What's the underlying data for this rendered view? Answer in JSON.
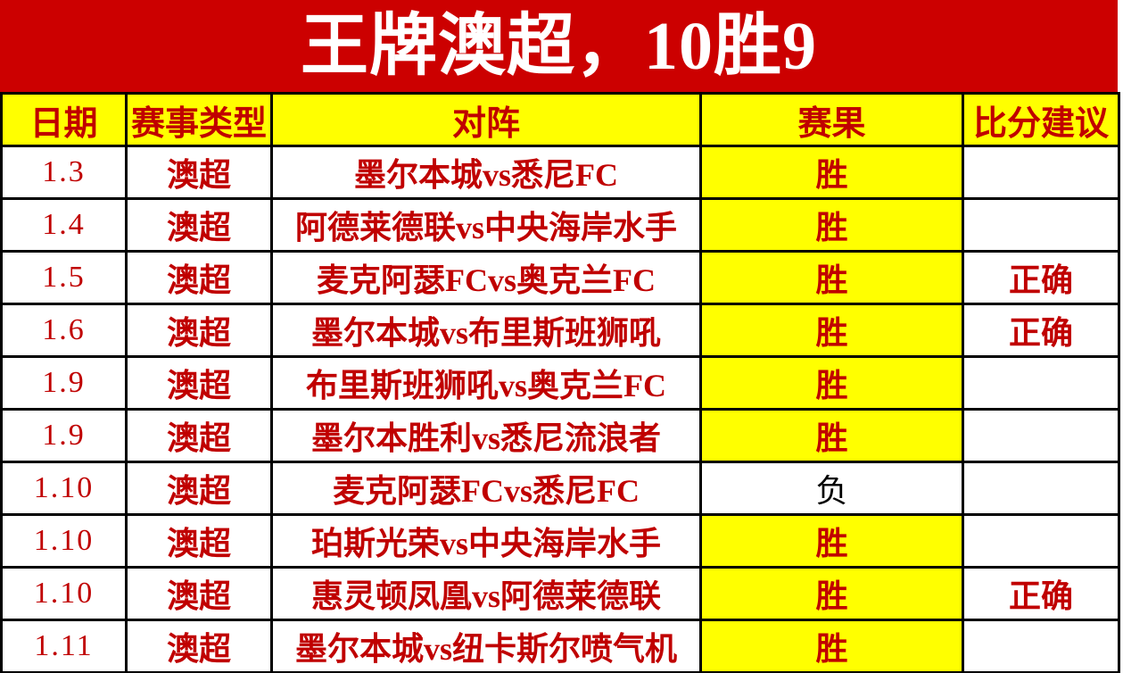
{
  "banner": {
    "title": "王牌澳超，10胜9"
  },
  "colors": {
    "banner_bg": "#CC0000",
    "banner_text": "#FFFFFF",
    "header_bg": "#FFFF00",
    "text_red": "#C00000",
    "win_bg": "#FFFF00",
    "loss_text": "#000000",
    "grid": "#000000"
  },
  "chart_data": {
    "type": "table",
    "title": "王牌澳超，10胜9",
    "columns": [
      "日期",
      "赛事类型",
      "对阵",
      "赛果",
      "比分建议"
    ],
    "rows": [
      {
        "date": "1.3",
        "league": "澳超",
        "match": "墨尔本城vs悉尼FC",
        "result": "胜",
        "win": true,
        "suggestion": ""
      },
      {
        "date": "1.4",
        "league": "澳超",
        "match": "阿德莱德联vs中央海岸水手",
        "result": "胜",
        "win": true,
        "suggestion": ""
      },
      {
        "date": "1.5",
        "league": "澳超",
        "match": "麦克阿瑟FCvs奥克兰FC",
        "result": "胜",
        "win": true,
        "suggestion": "正确"
      },
      {
        "date": "1.6",
        "league": "澳超",
        "match": "墨尔本城vs布里斯班狮吼",
        "result": "胜",
        "win": true,
        "suggestion": "正确"
      },
      {
        "date": "1.9",
        "league": "澳超",
        "match": "布里斯班狮吼vs奥克兰FC",
        "result": "胜",
        "win": true,
        "suggestion": ""
      },
      {
        "date": "1.9",
        "league": "澳超",
        "match": "墨尔本胜利vs悉尼流浪者",
        "result": "胜",
        "win": true,
        "suggestion": ""
      },
      {
        "date": "1.10",
        "league": "澳超",
        "match": "麦克阿瑟FCvs悉尼FC",
        "result": "负",
        "win": false,
        "suggestion": ""
      },
      {
        "date": "1.10",
        "league": "澳超",
        "match": "珀斯光荣vs中央海岸水手",
        "result": "胜",
        "win": true,
        "suggestion": ""
      },
      {
        "date": "1.10",
        "league": "澳超",
        "match": "惠灵顿凤凰vs阿德莱德联",
        "result": "胜",
        "win": true,
        "suggestion": "正确"
      },
      {
        "date": "1.11",
        "league": "澳超",
        "match": "墨尔本城vs纽卡斯尔喷气机",
        "result": "胜",
        "win": true,
        "suggestion": ""
      }
    ]
  }
}
